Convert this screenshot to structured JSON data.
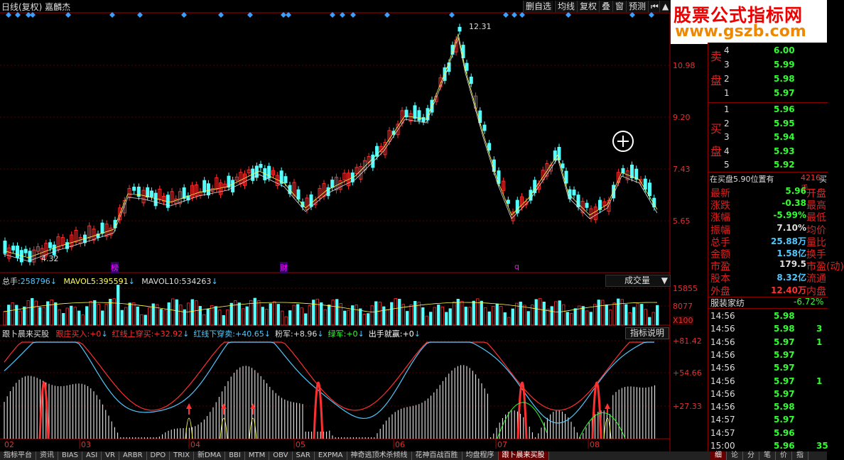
{
  "window": {
    "title": "日线(复权) 嘉麟杰",
    "toolbar": [
      "删自选",
      "均线",
      "复权",
      "叠",
      "窗",
      "预测"
    ]
  },
  "logo": {
    "line1": "股票公式指标网",
    "line2": "www.gszb.com"
  },
  "price_axis": {
    "labels": [
      "10.98",
      "9.20",
      "7.43",
      "5.65"
    ]
  },
  "annotations": {
    "high": "12.31",
    "low": "4.32",
    "mark1": "榜",
    "mark2": "财",
    "mark3": "q"
  },
  "volume_panel": {
    "total_label": "总手:",
    "total_value": "258796",
    "mavol5_label": "MAVOL5:",
    "mavol5_value": "395591",
    "mavol10_label": "MAVOL10:",
    "mavol10_value": "534263",
    "dropdown": "成交量",
    "axis": [
      "15855",
      "8077",
      "X100"
    ]
  },
  "indicator_panel": {
    "name": "跟卜晨来买股",
    "items": [
      {
        "label": "跟庄买入:",
        "value": "+0",
        "color": "#ff3030"
      },
      {
        "label": "红线上穿买:",
        "value": "+32.92",
        "color": "#ff3030"
      },
      {
        "label": "红线下穿卖:",
        "value": "+40.65",
        "color": "#50c8ff"
      },
      {
        "label": "粉军:",
        "value": "+8.96",
        "color": "#dddddd"
      },
      {
        "label": "绿军:",
        "value": "+0",
        "color": "#30ff30"
      },
      {
        "label": "出手就赢:",
        "value": "+0",
        "color": "#ffffff"
      }
    ],
    "help_button": "指标说明",
    "axis": [
      "+81.42",
      "+54.66",
      "+27.33"
    ]
  },
  "date_axis": [
    "02",
    "03",
    "04",
    "05",
    "06",
    "07",
    "08"
  ],
  "bottom_tabs": [
    "指标平台",
    "资讯",
    "BIAS",
    "ASI",
    "VR",
    "ARBR",
    "DPO",
    "TRIX",
    "新DMA",
    "BBI",
    "MTM",
    "OBV",
    "SAR",
    "EXPMA",
    "神奇逃顶术杀倾线",
    "花神百战百胜",
    "均盘程序",
    "跟卜晨来买股"
  ],
  "right_tabs": [
    "细",
    "论",
    "分",
    "笔",
    "价",
    "指"
  ],
  "order_book": {
    "sell_label": [
      "卖",
      "盘"
    ],
    "buy_label": [
      "买",
      "盘"
    ],
    "sell": [
      {
        "level": "4",
        "price": "6.00"
      },
      {
        "level": "3",
        "price": "5.99"
      },
      {
        "level": "2",
        "price": "5.98"
      },
      {
        "level": "1",
        "price": "5.97"
      }
    ],
    "buy": [
      {
        "level": "1",
        "price": "5.96"
      },
      {
        "level": "2",
        "price": "5.95"
      },
      {
        "level": "3",
        "price": "5.94"
      },
      {
        "level": "4",
        "price": "5.93"
      },
      {
        "level": "5",
        "price": "5.92"
      }
    ],
    "summary_label": "在买盘5.90位置有",
    "summary_value": "4216手",
    "summary_suffix": "买"
  },
  "quote": [
    {
      "k1": "最新",
      "v1": "5.96",
      "k2": "开盘",
      "c": "#30ff30"
    },
    {
      "k1": "涨跌",
      "v1": "-0.38",
      "k2": "最高",
      "c": "#30ff30"
    },
    {
      "k1": "涨幅",
      "v1": "-5.99%",
      "k2": "最低",
      "c": "#30ff30"
    },
    {
      "k1": "振幅",
      "v1": "7.10%",
      "k2": "均价",
      "c": "#dddddd"
    },
    {
      "k1": "总手",
      "v1": "25.88万",
      "k2": "量比",
      "c": "#50c8ff"
    },
    {
      "k1": "金额",
      "v1": "1.58亿",
      "k2": "换手",
      "c": "#50c8ff"
    },
    {
      "k1": "市盈",
      "v1": "179.5",
      "k2": "市盈(动)",
      "c": "#dddddd"
    },
    {
      "k1": "股本",
      "v1": "8.32亿",
      "k2": "流通",
      "c": "#50c8ff"
    },
    {
      "k1": "外盘",
      "v1": "12.40万",
      "k2": "内盘",
      "c": "#ff3030"
    }
  ],
  "sector": {
    "name": "服装家纺",
    "change": "-6.72%"
  },
  "ticks": [
    {
      "time": "14:56",
      "price": "5.98",
      "vol": ""
    },
    {
      "time": "14:56",
      "price": "5.98",
      "vol": "3"
    },
    {
      "time": "14:56",
      "price": "5.97",
      "vol": "1"
    },
    {
      "time": "14:56",
      "price": "5.97",
      "vol": ""
    },
    {
      "time": "14:56",
      "price": "5.97",
      "vol": ""
    },
    {
      "time": "14:56",
      "price": "5.97",
      "vol": "1"
    },
    {
      "time": "14:56",
      "price": "5.97",
      "vol": ""
    },
    {
      "time": "14:56",
      "price": "5.98",
      "vol": ""
    },
    {
      "time": "14:57",
      "price": "5.97",
      "vol": ""
    },
    {
      "time": "14:57",
      "price": "5.96",
      "vol": ""
    },
    {
      "time": "15:00",
      "price": "5.96",
      "vol": "35"
    }
  ],
  "colors": {
    "up": "#ff3030",
    "down": "#54ffff",
    "green": "#30ff30",
    "yellow": "#ffff50",
    "axis": "#aa0000"
  }
}
